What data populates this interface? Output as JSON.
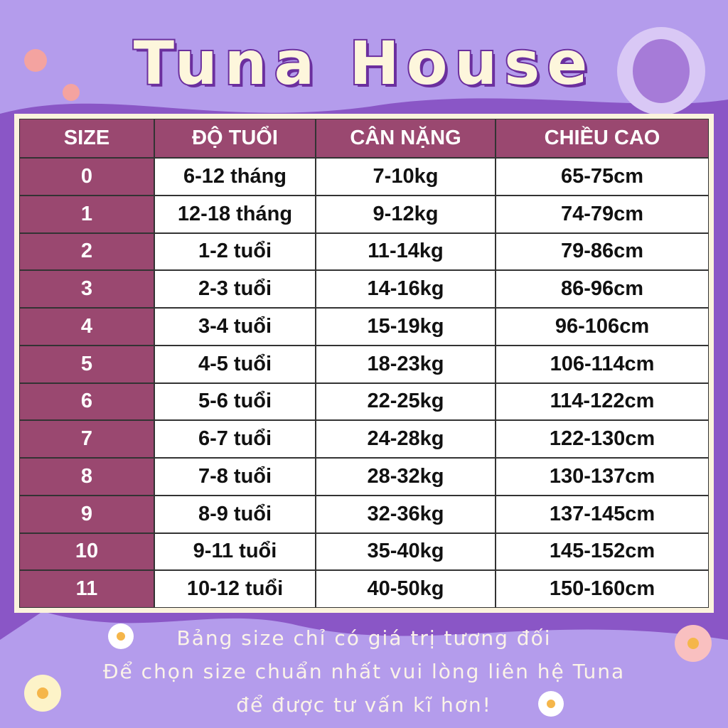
{
  "header": {
    "title": "Tuna House"
  },
  "table": {
    "columns": [
      "SIZE",
      "ĐỘ TUỔI",
      "CÂN NẶNG",
      "CHIỀU CAO"
    ],
    "rows": [
      [
        "0",
        "6-12 tháng",
        "7-10kg",
        "65-75cm"
      ],
      [
        "1",
        "12-18 tháng",
        "9-12kg",
        "74-79cm"
      ],
      [
        "2",
        "1-2 tuổi",
        "11-14kg",
        "79-86cm"
      ],
      [
        "3",
        "2-3 tuổi",
        "14-16kg",
        "86-96cm"
      ],
      [
        "4",
        "3-4 tuổi",
        "15-19kg",
        "96-106cm"
      ],
      [
        "5",
        "4-5 tuổi",
        "18-23kg",
        "106-114cm"
      ],
      [
        "6",
        "5-6 tuổi",
        "22-25kg",
        "114-122cm"
      ],
      [
        "7",
        "6-7 tuổi",
        "24-28kg",
        "122-130cm"
      ],
      [
        "8",
        "7-8 tuổi",
        "28-32kg",
        "130-137cm"
      ],
      [
        "9",
        "8-9 tuổi",
        "32-36kg",
        "137-145cm"
      ],
      [
        "10",
        "9-11 tuổi",
        "35-40kg",
        "145-152cm"
      ],
      [
        "11",
        "10-12 tuổi",
        "40-50kg",
        "150-160cm"
      ]
    ]
  },
  "footer": {
    "lines": [
      "Bảng size chỉ có giá trị tương đối",
      "Để chọn size chuẩn nhất vui lòng liên hệ Tuna",
      "để được tư vấn kĩ hơn!"
    ]
  }
}
